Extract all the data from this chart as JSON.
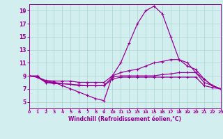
{
  "xlabel": "Windchill (Refroidissement éolien,°C)",
  "bg_color": "#d2eeee",
  "line_color": "#990099",
  "grid_color": "#b0d8d8",
  "xmin": 0,
  "xmax": 23,
  "ymin": 4,
  "ymax": 20,
  "yticks": [
    5,
    7,
    9,
    11,
    13,
    15,
    17,
    19
  ],
  "xticks": [
    0,
    1,
    2,
    3,
    4,
    5,
    6,
    7,
    8,
    9,
    10,
    11,
    12,
    13,
    14,
    15,
    16,
    17,
    18,
    19,
    20,
    21,
    22,
    23
  ],
  "series": [
    {
      "x": [
        0,
        1,
        2,
        3,
        4,
        5,
        6,
        7,
        8,
        9,
        10,
        11,
        12,
        13,
        14,
        15,
        16,
        17,
        18,
        19,
        20,
        21,
        22,
        23
      ],
      "y": [
        9,
        9,
        8,
        8,
        7.5,
        7,
        6.5,
        6,
        5.5,
        5.2,
        9,
        11,
        14,
        17,
        19,
        19.7,
        18.5,
        15,
        11.5,
        10.5,
        10,
        8.5,
        7.5,
        7
      ]
    },
    {
      "x": [
        0,
        1,
        2,
        3,
        4,
        5,
        6,
        7,
        8,
        9,
        10,
        11,
        12,
        13,
        14,
        15,
        16,
        17,
        18,
        19,
        20,
        21,
        22,
        23
      ],
      "y": [
        9,
        8.8,
        8.3,
        8.2,
        8.2,
        8.2,
        8,
        8,
        8,
        8,
        9,
        9.5,
        9.8,
        10,
        10.5,
        11,
        11.2,
        11.5,
        11.5,
        11,
        9.5,
        8,
        7.5,
        7
      ]
    },
    {
      "x": [
        0,
        1,
        2,
        3,
        4,
        5,
        6,
        7,
        8,
        9,
        10,
        11,
        12,
        13,
        14,
        15,
        16,
        17,
        18,
        19,
        20,
        21,
        22,
        23
      ],
      "y": [
        9,
        8.8,
        8.0,
        7.8,
        7.8,
        7.7,
        7.6,
        7.5,
        7.5,
        7.5,
        8.5,
        8.8,
        8.8,
        8.8,
        8.8,
        8.8,
        8.8,
        8.8,
        8.8,
        8.8,
        8.8,
        7.5,
        7.2,
        7
      ]
    },
    {
      "x": [
        0,
        1,
        2,
        3,
        4,
        5,
        6,
        7,
        8,
        9,
        10,
        11,
        12,
        13,
        14,
        15,
        16,
        17,
        18,
        19,
        20,
        21,
        22,
        23
      ],
      "y": [
        9,
        8.8,
        8.2,
        8.0,
        7.8,
        7.7,
        7.5,
        7.5,
        7.5,
        7.5,
        8.8,
        9.0,
        9.0,
        9.0,
        9.0,
        9.0,
        9.2,
        9.3,
        9.5,
        9.5,
        9.5,
        8.5,
        7.5,
        7
      ]
    }
  ]
}
